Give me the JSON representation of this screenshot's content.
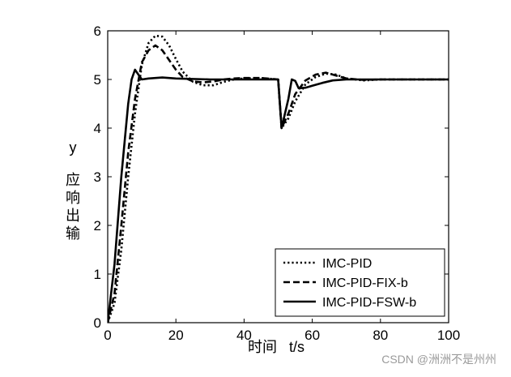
{
  "chart_data": {
    "type": "line",
    "xlabel": "时间   t/s",
    "ylabel_top": "y",
    "ylabel_chars": [
      "应",
      "响",
      "出",
      "输"
    ],
    "xlim": [
      0,
      100
    ],
    "ylim": [
      0,
      6
    ],
    "xticks": [
      0,
      20,
      40,
      60,
      80,
      100
    ],
    "yticks": [
      0,
      1,
      2,
      3,
      4,
      5,
      6
    ],
    "grid": false,
    "legend_position": "bottom-right",
    "series": [
      {
        "name": "IMC-PID",
        "style": "dotted",
        "x": [
          0,
          2,
          4,
          6,
          8,
          10,
          12,
          14,
          16,
          18,
          20,
          22,
          25,
          28,
          31,
          34,
          37,
          40,
          45,
          50,
          51,
          53,
          55,
          58,
          61,
          64,
          67,
          70,
          75,
          80,
          100
        ],
        "y": [
          0,
          0.4,
          1.5,
          3.0,
          4.3,
          5.3,
          5.75,
          5.9,
          5.88,
          5.7,
          5.42,
          5.16,
          4.95,
          4.88,
          4.88,
          4.95,
          5.0,
          5.02,
          5.03,
          5.0,
          4.0,
          4.2,
          4.55,
          4.9,
          5.05,
          5.12,
          5.1,
          5.02,
          4.98,
          5.0,
          5.0
        ]
      },
      {
        "name": "IMC-PID-FIX-b",
        "style": "dashed",
        "x": [
          0,
          2,
          4,
          6,
          8,
          10,
          12,
          14,
          16,
          18,
          20,
          22,
          25,
          28,
          31,
          34,
          37,
          40,
          45,
          50,
          51,
          53,
          55,
          58,
          61,
          64,
          67,
          70,
          75,
          80,
          100
        ],
        "y": [
          0,
          0.6,
          2.0,
          3.5,
          4.6,
          5.35,
          5.6,
          5.7,
          5.6,
          5.4,
          5.2,
          5.05,
          4.96,
          4.94,
          4.96,
          5.0,
          5.02,
          5.03,
          5.03,
          5.0,
          4.0,
          4.3,
          4.7,
          4.98,
          5.1,
          5.14,
          5.08,
          5.02,
          4.99,
          5.0,
          5.0
        ]
      },
      {
        "name": "IMC-PID-FSW-b",
        "style": "solid",
        "x": [
          0,
          2,
          4,
          6,
          7,
          8,
          9,
          10,
          12,
          14,
          16,
          20,
          30,
          40,
          50,
          51,
          53,
          54,
          55,
          56,
          58,
          60,
          63,
          66,
          70,
          80,
          100
        ],
        "y": [
          0,
          1.2,
          3.0,
          4.5,
          5.0,
          5.2,
          5.1,
          5.0,
          5.02,
          5.03,
          5.04,
          5.02,
          5.0,
          5.0,
          5.0,
          4.0,
          4.6,
          5.0,
          4.97,
          4.82,
          4.83,
          4.87,
          4.93,
          4.98,
          5.0,
          5.0,
          5.0
        ]
      }
    ]
  },
  "watermark": "CSDN @洲洲不是州州"
}
